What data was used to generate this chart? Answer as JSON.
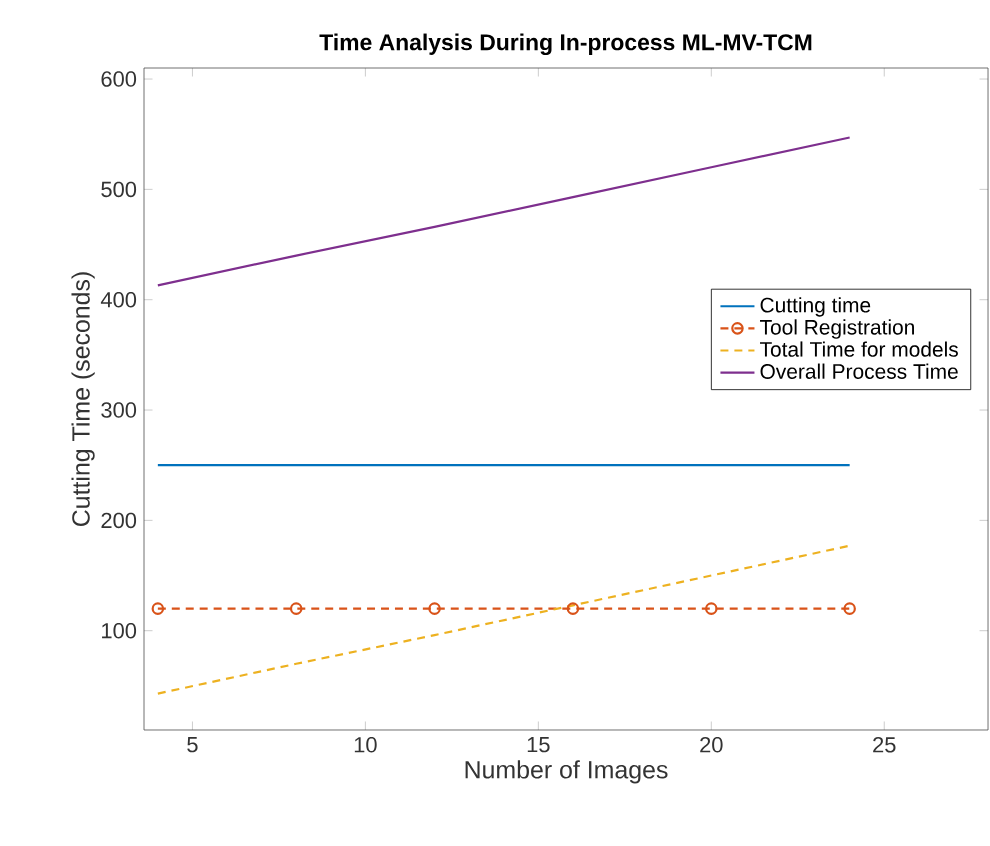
{
  "chart_data": {
    "type": "line",
    "title": "Time Analysis During In-process ML-MV-TCM",
    "xlabel": "Number of Images",
    "ylabel": "Cutting Time (seconds)",
    "x": [
      4,
      8,
      12,
      16,
      20,
      24
    ],
    "series": [
      {
        "name": "Cutting time",
        "color": "#0072bd",
        "values": [
          250,
          250,
          250,
          250,
          250,
          250
        ],
        "line_style": "solid",
        "marker": "none"
      },
      {
        "name": "Tool Registration",
        "color": "#d95319",
        "values": [
          120,
          120,
          120,
          120,
          120,
          120
        ],
        "line_style": "dashed",
        "marker": "circle"
      },
      {
        "name": "Total Time for models",
        "color": "#edb120",
        "values": [
          43,
          70,
          96,
          123,
          150,
          177
        ],
        "line_style": "dashed",
        "marker": "none"
      },
      {
        "name": "Overall Process Time",
        "color": "#7e2f8e",
        "values": [
          413,
          440,
          466,
          493,
          520,
          547
        ],
        "line_style": "solid",
        "marker": "none"
      }
    ],
    "xlim": [
      3.6,
      28
    ],
    "ylim": [
      10,
      610
    ],
    "xticks": [
      5,
      10,
      15,
      20,
      25
    ],
    "yticks": [
      100,
      200,
      300,
      400,
      500,
      600
    ],
    "grid": false,
    "legend": "right"
  }
}
